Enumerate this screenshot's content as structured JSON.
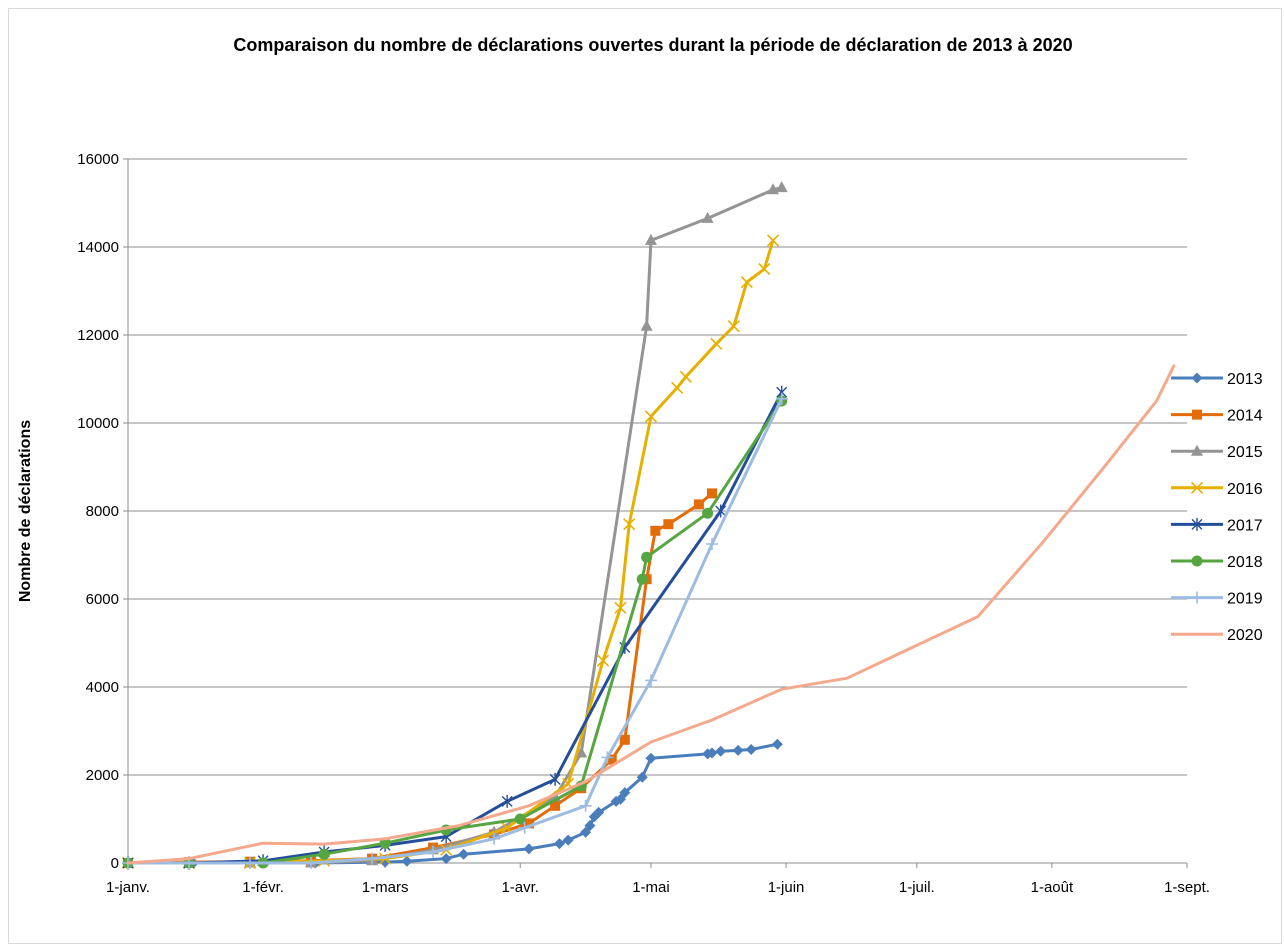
{
  "chart_data": {
    "type": "line",
    "title": "Comparaison du nombre de déclarations ouvertes durant la période de déclaration de 2013 à 2020",
    "xlabel": "",
    "ylabel": "Nombre de déclarations",
    "ylim": [
      0,
      16000
    ],
    "yticks": [
      0,
      2000,
      4000,
      6000,
      8000,
      10000,
      12000,
      14000,
      16000
    ],
    "xlim": [
      0,
      243
    ],
    "x_unit": "day of year",
    "xticks": [
      {
        "value": 0,
        "label": "1-janv."
      },
      {
        "value": 31,
        "label": "1-févr."
      },
      {
        "value": 59,
        "label": "1-mars"
      },
      {
        "value": 90,
        "label": "1-avr."
      },
      {
        "value": 120,
        "label": "1-mai"
      },
      {
        "value": 151,
        "label": "1-juin"
      },
      {
        "value": 181,
        "label": "1-juil."
      },
      {
        "value": 212,
        "label": "1-août"
      },
      {
        "value": 243,
        "label": "1-sept."
      }
    ],
    "grid": true,
    "legend_position": "right",
    "series": [
      {
        "name": "2013",
        "color": "#4a7ebb",
        "marker": "diamond",
        "points": [
          [
            0,
            0
          ],
          [
            15,
            0
          ],
          [
            31,
            0
          ],
          [
            43,
            0
          ],
          [
            59,
            20
          ],
          [
            64,
            40
          ],
          [
            73,
            100
          ],
          [
            77,
            200
          ],
          [
            92,
            320
          ],
          [
            99,
            440
          ],
          [
            101,
            520
          ],
          [
            105,
            700
          ],
          [
            106,
            850
          ],
          [
            107,
            1050
          ],
          [
            108,
            1150
          ],
          [
            112,
            1400
          ],
          [
            113,
            1450
          ],
          [
            114,
            1600
          ],
          [
            118,
            1950
          ],
          [
            120,
            2380
          ],
          [
            133,
            2480
          ],
          [
            134,
            2500
          ],
          [
            136,
            2540
          ],
          [
            140,
            2560
          ],
          [
            143,
            2580
          ],
          [
            149,
            2700
          ]
        ]
      },
      {
        "name": "2014",
        "color": "#e36c09",
        "marker": "square",
        "points": [
          [
            0,
            0
          ],
          [
            14,
            20
          ],
          [
            28,
            30
          ],
          [
            42,
            50
          ],
          [
            56,
            100
          ],
          [
            70,
            350
          ],
          [
            84,
            650
          ],
          [
            92,
            900
          ],
          [
            98,
            1300
          ],
          [
            104,
            1700
          ],
          [
            111,
            2350
          ],
          [
            114,
            2800
          ],
          [
            119,
            6450
          ],
          [
            121,
            7550
          ],
          [
            124,
            7700
          ],
          [
            131,
            8150
          ],
          [
            134,
            8400
          ]
        ]
      },
      {
        "name": "2015",
        "color": "#949494",
        "marker": "triangle",
        "points": [
          [
            0,
            0
          ],
          [
            14,
            0
          ],
          [
            28,
            0
          ],
          [
            42,
            0
          ],
          [
            56,
            50
          ],
          [
            70,
            300
          ],
          [
            84,
            700
          ],
          [
            98,
            1500
          ],
          [
            104,
            2500
          ],
          [
            119,
            12200
          ],
          [
            120,
            14150
          ],
          [
            133,
            14650
          ],
          [
            148,
            15300
          ],
          [
            150,
            15350
          ]
        ]
      },
      {
        "name": "2016",
        "color": "#e6b000",
        "marker": "x",
        "points": [
          [
            0,
            0
          ],
          [
            14,
            0
          ],
          [
            28,
            0
          ],
          [
            45,
            50
          ],
          [
            59,
            100
          ],
          [
            73,
            300
          ],
          [
            87,
            800
          ],
          [
            101,
            1800
          ],
          [
            109,
            4600
          ],
          [
            113,
            5800
          ],
          [
            115,
            7700
          ],
          [
            120,
            10150
          ],
          [
            126,
            10800
          ],
          [
            128,
            11050
          ],
          [
            135,
            11800
          ],
          [
            139,
            12200
          ],
          [
            142,
            13200
          ],
          [
            146,
            13500
          ],
          [
            148,
            14150
          ]
        ]
      },
      {
        "name": "2017",
        "color": "#254e9a",
        "marker": "asterisk",
        "points": [
          [
            0,
            0
          ],
          [
            14,
            0
          ],
          [
            31,
            50
          ],
          [
            45,
            250
          ],
          [
            59,
            400
          ],
          [
            73,
            600
          ],
          [
            87,
            1400
          ],
          [
            98,
            1900
          ],
          [
            114,
            4900
          ],
          [
            136,
            8000
          ],
          [
            150,
            10700
          ]
        ]
      },
      {
        "name": "2018",
        "color": "#55a541",
        "marker": "circle",
        "points": [
          [
            0,
            0
          ],
          [
            14,
            0
          ],
          [
            31,
            0
          ],
          [
            45,
            200
          ],
          [
            59,
            450
          ],
          [
            73,
            750
          ],
          [
            90,
            1000
          ],
          [
            104,
            1750
          ],
          [
            118,
            6450
          ],
          [
            119,
            6950
          ],
          [
            133,
            7950
          ],
          [
            150,
            10500
          ]
        ]
      },
      {
        "name": "2019",
        "color": "#9dbce3",
        "marker": "plus",
        "points": [
          [
            0,
            0
          ],
          [
            14,
            0
          ],
          [
            28,
            0
          ],
          [
            42,
            0
          ],
          [
            56,
            100
          ],
          [
            70,
            250
          ],
          [
            84,
            550
          ],
          [
            91,
            800
          ],
          [
            105,
            1300
          ],
          [
            110,
            2400
          ],
          [
            120,
            4150
          ],
          [
            134,
            7250
          ],
          [
            150,
            10550
          ]
        ]
      },
      {
        "name": "2020",
        "color": "#f4a98d",
        "marker": "none",
        "points": [
          [
            0,
            0
          ],
          [
            14,
            100
          ],
          [
            31,
            450
          ],
          [
            45,
            430
          ],
          [
            59,
            550
          ],
          [
            76,
            850
          ],
          [
            92,
            1300
          ],
          [
            105,
            1850
          ],
          [
            120,
            2750
          ],
          [
            134,
            3250
          ],
          [
            150,
            3950
          ],
          [
            165,
            4200
          ],
          [
            180,
            4900
          ],
          [
            195,
            5600
          ],
          [
            210,
            7300
          ],
          [
            224,
            9000
          ],
          [
            236,
            10500
          ],
          [
            240,
            11300
          ]
        ]
      }
    ]
  }
}
